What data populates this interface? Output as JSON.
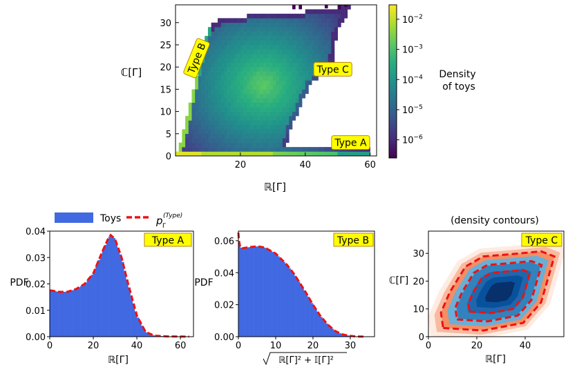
{
  "chart_data": [
    {
      "type": "heatmap",
      "xlabel": "ℝ[Γ]",
      "ylabel": "ℂ[Γ]",
      "xlim": [
        0,
        62
      ],
      "ylim": [
        0,
        34
      ],
      "xticks": [
        20,
        40,
        60
      ],
      "yticks": [
        0,
        5,
        10,
        15,
        20,
        25,
        30
      ],
      "colorbar": {
        "label_line1": "Density",
        "label_line2": "of toys",
        "scale": "log",
        "range": [
          2.5e-07,
          0.03
        ],
        "ticks": [
          {
            "value": 1e-06,
            "base": "10",
            "exp": "−6"
          },
          {
            "value": 1e-05,
            "base": "10",
            "exp": "−5"
          },
          {
            "value": 0.0001,
            "base": "10",
            "exp": "−4"
          },
          {
            "value": 0.001,
            "base": "10",
            "exp": "−3"
          },
          {
            "value": 0.01,
            "base": "10",
            "exp": "−2"
          }
        ]
      },
      "annotations": [
        {
          "text": "Type B",
          "x": 6.5,
          "y": 22,
          "rotation": -68
        },
        {
          "text": "Type C",
          "x": 48.5,
          "y": 19.5
        },
        {
          "text": "Type A",
          "x": 54,
          "y": 3
        }
      ]
    },
    {
      "type": "bar",
      "badge": "Type A",
      "xlabel": "ℝ[Γ]",
      "ylabel": "PDF",
      "xlim": [
        0,
        66
      ],
      "ylim": [
        0,
        0.04
      ],
      "xticks": [
        0,
        20,
        40,
        60
      ],
      "yticks": [
        0.0,
        0.01,
        0.02,
        0.03,
        0.04
      ],
      "ytick_labels": [
        "0.00",
        "0.01",
        "0.02",
        "0.03",
        "0.04"
      ],
      "curve_x": [
        0,
        1,
        4,
        8,
        12,
        16,
        20,
        24,
        27,
        28,
        30,
        33,
        36,
        40,
        44,
        48,
        54,
        60,
        64
      ],
      "curve_y": [
        0.0175,
        0.0175,
        0.017,
        0.017,
        0.018,
        0.02,
        0.024,
        0.032,
        0.0375,
        0.0385,
        0.037,
        0.03,
        0.02,
        0.008,
        0.0018,
        0.0004,
        0.0001,
        5e-05,
        2e-05
      ]
    },
    {
      "type": "bar",
      "badge": "Type B",
      "xlabel": "√ℝ[Γ]²+𝕀[Γ]²",
      "ylabel": "PDF",
      "xlim": [
        0,
        36.5
      ],
      "ylim": [
        0,
        0.066
      ],
      "xticks": [
        0,
        10,
        20,
        30
      ],
      "yticks": [
        0.0,
        0.02,
        0.04,
        0.06
      ],
      "ytick_labels": [
        "0.00",
        "0.02",
        "0.04",
        "0.06"
      ],
      "curve_x": [
        0,
        0.1,
        0.25,
        0.5,
        1,
        3,
        5,
        7,
        10,
        13,
        15,
        18,
        20,
        22,
        24,
        26,
        28,
        30,
        32,
        34
      ],
      "curve_y": [
        0.065,
        0.062,
        0.059,
        0.056,
        0.0553,
        0.056,
        0.0565,
        0.0558,
        0.052,
        0.045,
        0.039,
        0.028,
        0.02,
        0.013,
        0.0075,
        0.0035,
        0.0014,
        0.0005,
        0.0001,
        3e-05
      ]
    },
    {
      "type": "scatter",
      "badge": "Type C",
      "title": "(density contours)",
      "xlabel": "ℝ[Γ]",
      "ylabel": "ℂ[Γ]",
      "xlim": [
        0,
        56
      ],
      "ylim": [
        0,
        38
      ],
      "xticks": [
        0,
        20,
        40
      ],
      "yticks": [
        0,
        10,
        20,
        30
      ]
    }
  ],
  "legend": {
    "items": [
      {
        "label": "Toys",
        "color": "#4169e1",
        "kind": "patch"
      },
      {
        "label_base": "p",
        "label_sub": "Γ",
        "label_sup": "(Type)",
        "color": "#ee1111",
        "kind": "dashed"
      }
    ]
  },
  "colors": {
    "bars": "#4169e1",
    "curve": "#ee1111",
    "badge_fill": "#ffff00",
    "badge_border": "#b8860b"
  }
}
